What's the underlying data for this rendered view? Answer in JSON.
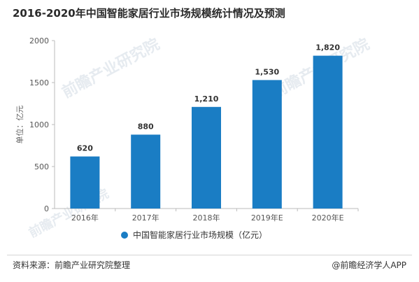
{
  "chart_data": {
    "type": "bar",
    "title": "2016-2020年中国智能家居行业市场规模统计情况及预测",
    "categories": [
      "2016年",
      "2017年",
      "2018年",
      "2019年E",
      "2020年E"
    ],
    "series": [
      {
        "name": "中国智能家居行业市场规模（亿元）",
        "values": [
          620,
          880,
          1210,
          1530,
          1820
        ],
        "value_labels": [
          "620",
          "880",
          "1,210",
          "1,530",
          "1,820"
        ],
        "color": "#1a7dc4"
      }
    ],
    "ylabel": "单位：亿元",
    "ylim": [
      0,
      2000
    ],
    "yticks": [
      "0",
      "500",
      "1000",
      "1500",
      "2000"
    ],
    "grid": false,
    "legend": "bottom"
  },
  "watermark": "前瞻产业研究院",
  "footer": {
    "source": "资料来源：前瞻产业研究院整理",
    "brand": "@前瞻经济学人APP"
  }
}
